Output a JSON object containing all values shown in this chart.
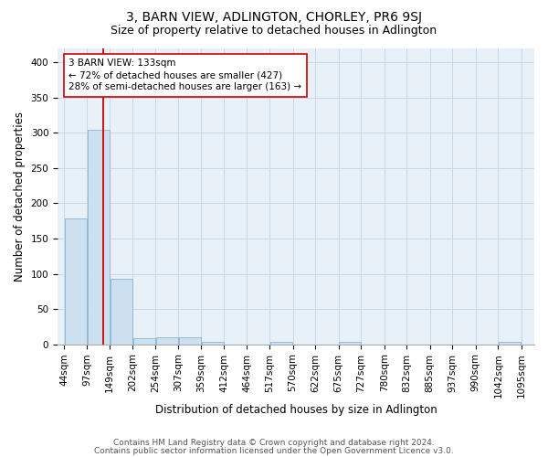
{
  "title": "3, BARN VIEW, ADLINGTON, CHORLEY, PR6 9SJ",
  "subtitle": "Size of property relative to detached houses in Adlington",
  "xlabel": "Distribution of detached houses by size in Adlington",
  "ylabel": "Number of detached properties",
  "footer_line1": "Contains HM Land Registry data © Crown copyright and database right 2024.",
  "footer_line2": "Contains public sector information licensed under the Open Government Licence v3.0.",
  "bin_edges": [
    44,
    97,
    149,
    202,
    254,
    307,
    359,
    412,
    464,
    517,
    570,
    622,
    675,
    727,
    780,
    832,
    885,
    937,
    990,
    1042,
    1095
  ],
  "bar_heights": [
    178,
    304,
    93,
    9,
    10,
    10,
    4,
    0,
    0,
    4,
    0,
    0,
    4,
    0,
    0,
    0,
    0,
    0,
    0,
    4
  ],
  "bar_color": "#cce0f0",
  "bar_edge_color": "#8ab4d4",
  "property_size": 133,
  "red_line_color": "#cc0000",
  "annotation_text": "3 BARN VIEW: 133sqm\n← 72% of detached houses are smaller (427)\n28% of semi-detached houses are larger (163) →",
  "annotation_box_color": "#ffffff",
  "annotation_box_edge_color": "#cc0000",
  "ylim": [
    0,
    420
  ],
  "yticks": [
    0,
    50,
    100,
    150,
    200,
    250,
    300,
    350,
    400
  ],
  "grid_color": "#c8d8e8",
  "background_color": "#e8f0f8",
  "title_fontsize": 10,
  "subtitle_fontsize": 9,
  "axis_label_fontsize": 8.5,
  "tick_fontsize": 7.5,
  "annotation_fontsize": 7.5,
  "footer_fontsize": 6.5
}
